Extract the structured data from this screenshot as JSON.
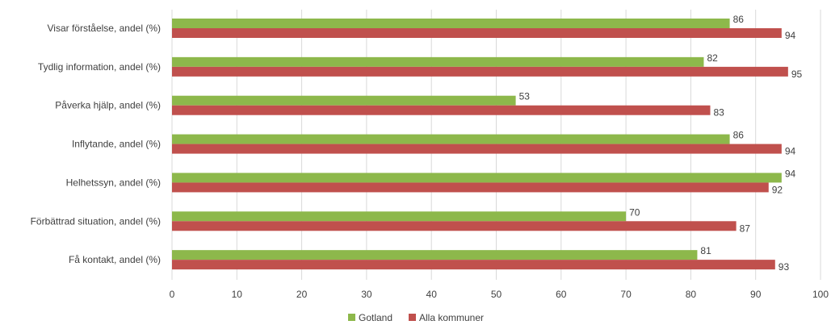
{
  "chart_data": {
    "type": "bar",
    "orientation": "horizontal",
    "categories": [
      "Visar förståelse, andel (%)",
      "Tydlig information, andel (%)",
      "Påverka hjälp, andel (%)",
      "Inflytande, andel (%)",
      "Helhetssyn, andel (%)",
      "Förbättrad situation, andel (%)",
      "Få kontakt, andel (%)"
    ],
    "series": [
      {
        "name": "Gotland",
        "color": "#8db84b",
        "values": [
          86,
          82,
          53,
          86,
          94,
          70,
          81
        ]
      },
      {
        "name": "Alla  kommuner",
        "color": "#c0504d",
        "values": [
          94,
          95,
          83,
          94,
          92,
          87,
          93
        ]
      }
    ],
    "xlim": [
      0,
      100
    ],
    "xticks": [
      0,
      10,
      20,
      30,
      40,
      50,
      60,
      70,
      80,
      90,
      100
    ],
    "grid": true,
    "legend": "bottom-center",
    "data_labels": true,
    "title": "",
    "xlabel": "",
    "ylabel": ""
  }
}
